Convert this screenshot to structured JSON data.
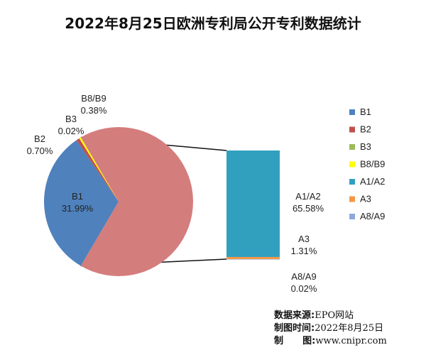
{
  "chart_data": {
    "type": "pie",
    "title": "2022年8月25日欧洲专利局公开专利数据统计",
    "legend_position": "right",
    "slices": [
      {
        "name": "B1",
        "value": 31.99,
        "label": "31.99%",
        "color": "#4F81BD"
      },
      {
        "name": "B2",
        "value": 0.7,
        "label": "0.70%",
        "color": "#C0504D"
      },
      {
        "name": "B3",
        "value": 0.02,
        "label": "0.02%",
        "color": "#9BBB59"
      },
      {
        "name": "B8/B9",
        "value": 0.38,
        "label": "0.38%",
        "color": "#FFFF00"
      },
      {
        "name": "A1/A2",
        "value": 65.58,
        "label": "65.58%",
        "color": "#31A0BF"
      },
      {
        "name": "A3",
        "value": 1.31,
        "label": "1.31%",
        "color": "#F79646"
      },
      {
        "name": "A8/A9",
        "value": 0.02,
        "label": "0.02%",
        "color": "#8EA9DB"
      }
    ],
    "main_pie_slices": [
      "B1",
      "B2",
      "B3",
      "B8/B9"
    ],
    "other_slice_color": "#D47D7D",
    "breakout_bar_slices": [
      "A1/A2",
      "A3",
      "A8/A9"
    ]
  },
  "source": {
    "source_label": "数据来源:",
    "source_value": "EPO网站",
    "date_label": "制图时间:",
    "date_value": "2022年8月25日",
    "author_label": "制      图:",
    "author_value": "www.cnipr.com"
  }
}
